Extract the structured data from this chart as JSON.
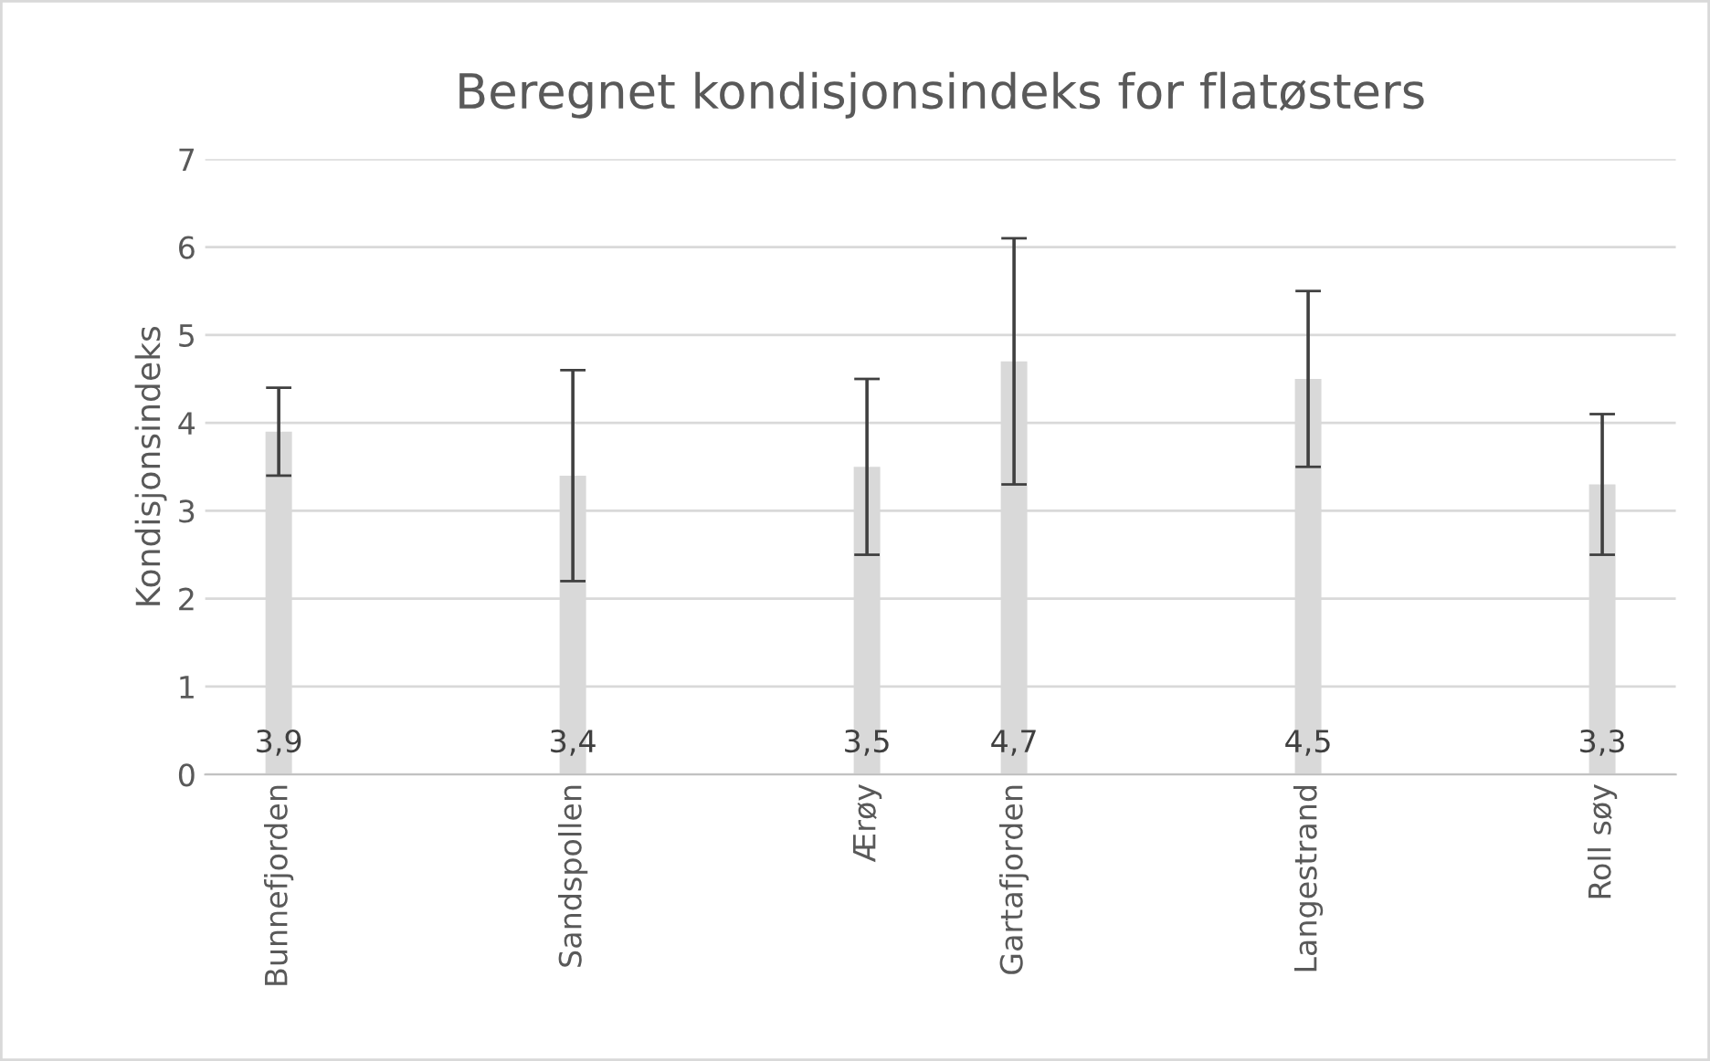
{
  "chart_data": {
    "type": "bar",
    "title": "Beregnet kondisjonsindeks for flatøsters",
    "ylabel": "Kondisjonsindeks",
    "categories": [
      "Bunnefjorden",
      null,
      "Sandspollen",
      null,
      "Ærøy",
      "Gartafjorden",
      null,
      "Langestrand",
      null,
      "Roll søy"
    ],
    "values": [
      3.9,
      null,
      3.4,
      null,
      3.5,
      4.7,
      null,
      4.5,
      null,
      3.3
    ],
    "errors": [
      0.5,
      null,
      1.2,
      null,
      1.0,
      1.4,
      null,
      1.0,
      null,
      0.8
    ],
    "value_labels": [
      "3,9",
      null,
      "3,4",
      null,
      "3,5",
      "4,7",
      null,
      "4,5",
      null,
      "3,3"
    ],
    "color": "#d9d9d9",
    "ylim": [
      0,
      7
    ],
    "yticks": [
      0,
      1,
      2,
      3,
      4,
      5,
      6,
      7
    ],
    "grid": "y"
  }
}
